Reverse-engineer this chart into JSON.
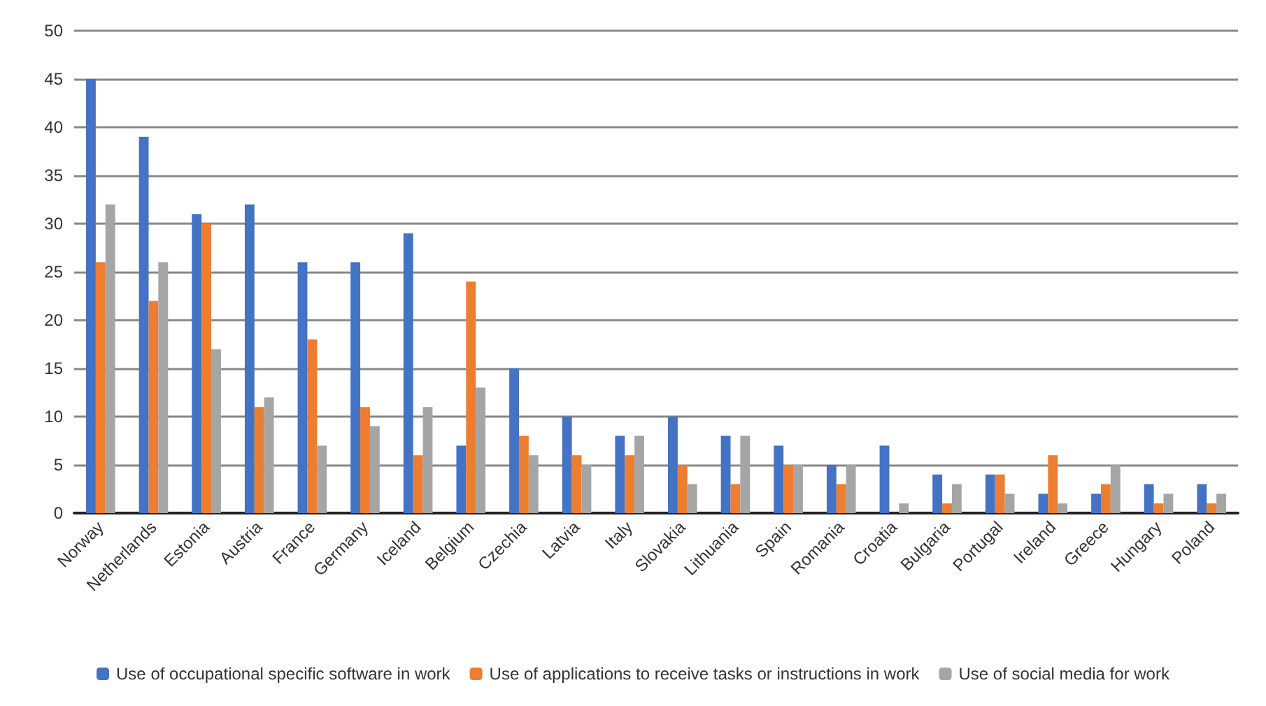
{
  "chart_data": {
    "type": "bar",
    "categories": [
      "Norway",
      "Netherlands",
      "Estonia",
      "Austria",
      "France",
      "Germany",
      "Iceland",
      "Belgium",
      "Czechia",
      "Latvia",
      "Italy",
      "Slovakia",
      "Lithuania",
      "Spain",
      "Romania",
      "Croatia",
      "Bulgaria",
      "Portugal",
      "Ireland",
      "Greece",
      "Hungary",
      "Poland"
    ],
    "series": [
      {
        "name": "Use of occupational specific software in work",
        "color": "#4472c4",
        "values": [
          45,
          39,
          31,
          32,
          26,
          26,
          29,
          7,
          15,
          10,
          8,
          10,
          8,
          7,
          5,
          7,
          4,
          4,
          2,
          2,
          3,
          3
        ]
      },
      {
        "name": "Use of applications to receive tasks or instructions in work",
        "color": "#ed7d31",
        "values": [
          26,
          22,
          30,
          11,
          18,
          11,
          6,
          24,
          8,
          6,
          6,
          5,
          3,
          5,
          3,
          0,
          1,
          4,
          6,
          3,
          1,
          1
        ]
      },
      {
        "name": "Use of social media for work",
        "color": "#a5a5a5",
        "values": [
          32,
          26,
          17,
          12,
          7,
          9,
          11,
          13,
          6,
          5,
          8,
          3,
          8,
          5,
          5,
          1,
          3,
          2,
          1,
          5,
          2,
          2
        ]
      }
    ],
    "ylim": [
      0,
      50
    ],
    "yticks": [
      0,
      5,
      10,
      15,
      20,
      25,
      30,
      35,
      40,
      45,
      50
    ],
    "grid": "y",
    "legend": "bottom"
  }
}
